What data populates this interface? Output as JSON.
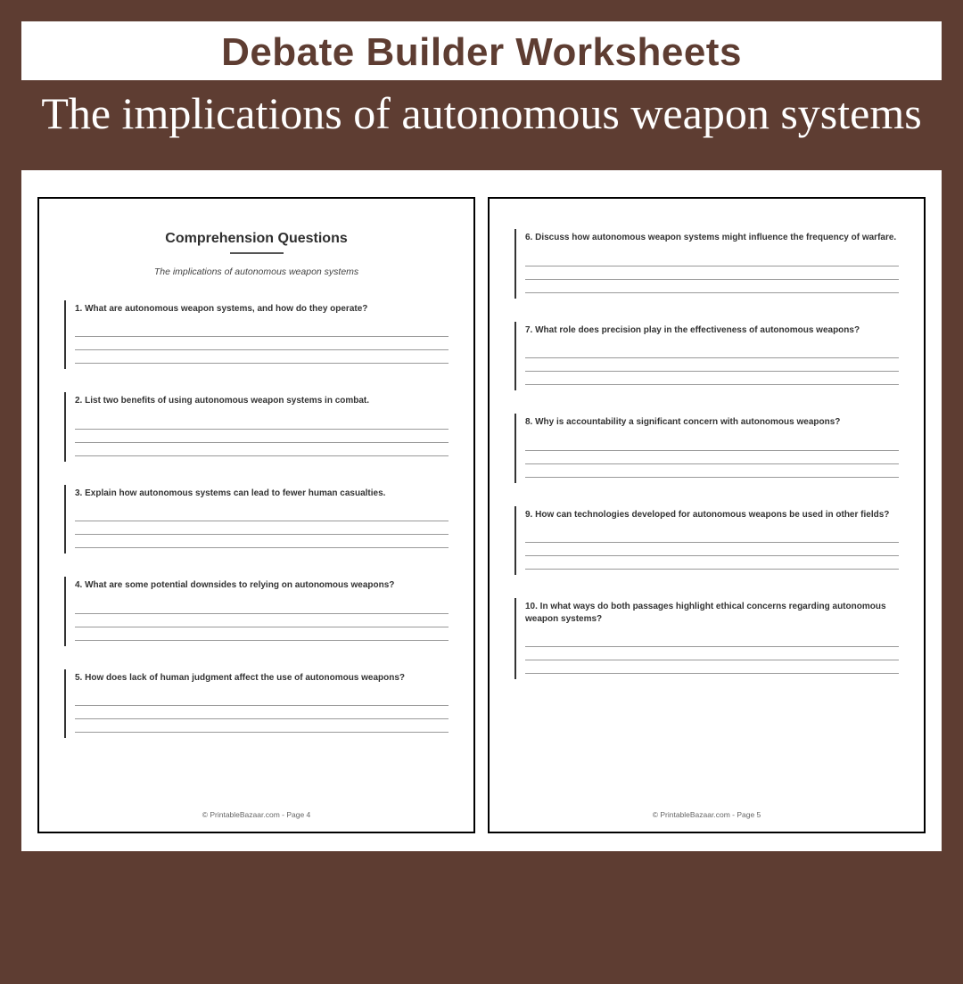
{
  "header": {
    "title": "Debate Builder Worksheets",
    "subtitle": "The implications of autonomous weapon systems"
  },
  "colors": {
    "background": "#5e3d32",
    "header_bg": "#ffffff",
    "header_text": "#5e3d32",
    "subtitle_text": "#ffffff",
    "page_bg": "#ffffff",
    "page_border": "#000000",
    "question_text": "#333333",
    "line_color": "#999999"
  },
  "page1": {
    "heading": "Comprehension Questions",
    "subtitle": "The implications of autonomous weapon systems",
    "questions": [
      "1. What are autonomous weapon systems, and how do they operate?",
      "2. List two benefits of using autonomous weapon systems in combat.",
      "3. Explain how autonomous systems can lead to fewer human casualties.",
      "4. What are some potential downsides to relying on autonomous weapons?",
      "5. How does lack of human judgment affect the use of autonomous weapons?"
    ],
    "footer": "© PrintableBazaar.com - Page 4"
  },
  "page2": {
    "questions": [
      "6. Discuss how autonomous weapon systems might influence the frequency of warfare.",
      "7. What role does precision play in the effectiveness of autonomous weapons?",
      "8. Why is accountability a significant concern with autonomous weapons?",
      "9. How can technologies developed for autonomous weapons be used in other fields?",
      "10. In what ways do both passages highlight ethical concerns regarding autonomous weapon systems?"
    ],
    "footer": "© PrintableBazaar.com - Page 5"
  }
}
